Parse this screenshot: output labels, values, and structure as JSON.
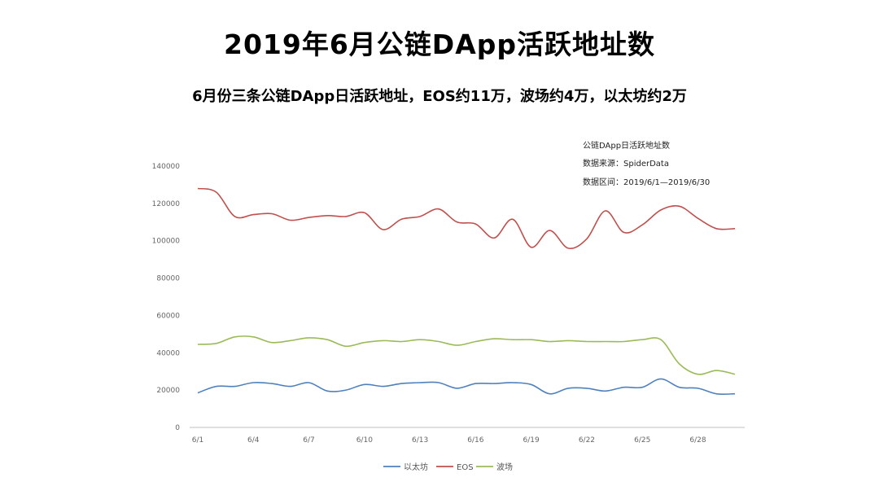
{
  "title": "2019年6月公链DApp活跃地址数",
  "subtitle": "6月份三条公链DApp日活跃地址，EOS约11万，波场约4万，以太坊约2万",
  "chart_data": {
    "type": "line",
    "annotation": [
      "公链DApp日活跃地址数",
      "数据来源：SpiderData",
      "数据区间：2019/6/1—2019/6/30"
    ],
    "x": [
      "6/1",
      "6/2",
      "6/3",
      "6/4",
      "6/5",
      "6/6",
      "6/7",
      "6/8",
      "6/9",
      "6/10",
      "6/11",
      "6/12",
      "6/13",
      "6/14",
      "6/15",
      "6/16",
      "6/17",
      "6/18",
      "6/19",
      "6/20",
      "6/21",
      "6/22",
      "6/23",
      "6/24",
      "6/25",
      "6/26",
      "6/27",
      "6/28",
      "6/29",
      "6/30"
    ],
    "x_tick_labels": [
      "6/1",
      "6/4",
      "6/7",
      "6/10",
      "6/13",
      "6/16",
      "6/19",
      "6/22",
      "6/25",
      "6/28"
    ],
    "ylim": [
      0,
      140000
    ],
    "y_ticks": [
      0,
      20000,
      40000,
      60000,
      80000,
      100000,
      120000,
      140000
    ],
    "grid": false,
    "legend_position": "bottom",
    "series": [
      {
        "name": "以太坊",
        "color": "#4f81bd",
        "values": [
          18500,
          22000,
          22000,
          24000,
          23500,
          22000,
          24000,
          19500,
          20000,
          23000,
          22000,
          23500,
          24000,
          24000,
          21000,
          23500,
          23500,
          24000,
          23000,
          18000,
          21000,
          21000,
          19500,
          21500,
          21500,
          26000,
          21500,
          21000,
          18000,
          18000
        ]
      },
      {
        "name": "EOS",
        "color": "#c0504d",
        "values": [
          128000,
          126000,
          113000,
          114000,
          114500,
          111000,
          112500,
          113500,
          113000,
          115000,
          106000,
          111500,
          113000,
          117000,
          110000,
          109000,
          101500,
          111500,
          96500,
          105500,
          96000,
          101000,
          116000,
          104500,
          108500,
          116500,
          118500,
          112000,
          106500,
          106500
        ]
      },
      {
        "name": "波场",
        "color": "#9bbb59",
        "values": [
          44500,
          45000,
          48500,
          48500,
          45500,
          46500,
          48000,
          47000,
          43500,
          45500,
          46500,
          46000,
          47000,
          46000,
          44000,
          46000,
          47500,
          47000,
          47000,
          46000,
          46500,
          46000,
          46000,
          46000,
          47000,
          47000,
          34000,
          28500,
          30500,
          28500
        ]
      }
    ]
  }
}
